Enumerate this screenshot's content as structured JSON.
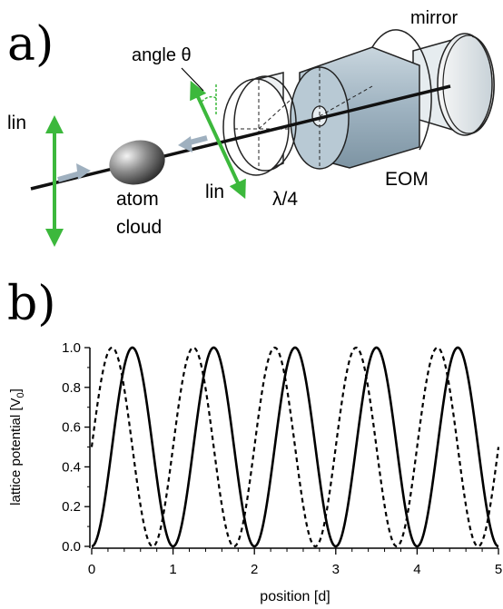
{
  "panel_a": {
    "label": "a)",
    "labels": {
      "mirror": "mirror",
      "angle": "angle θ",
      "lin_left": "lin",
      "lin_bottom": "lin",
      "quarter_wave": "λ/4",
      "eom": "EOM",
      "atom_line1": "atom",
      "atom_line2": "cloud"
    },
    "colors": {
      "polarization_arrow": "#3cb83c",
      "beam_arrow": "#9fb0bf",
      "eom_body": "#a9bcc8",
      "atom": "#555555"
    }
  },
  "panel_b": {
    "label": "b)"
  },
  "chart_data": {
    "type": "line",
    "xlabel": "position [d]",
    "ylabel": "lattice potential [V",
    "ylabel_sub": "0",
    "ylabel_end": "]",
    "xlim": [
      0,
      5
    ],
    "ylim": [
      0,
      1
    ],
    "x_ticks": [
      "0",
      "1",
      "2",
      "3",
      "4",
      "5"
    ],
    "y_ticks": [
      "0.0",
      "0.2",
      "0.4",
      "0.6",
      "0.8",
      "1.0"
    ],
    "series": [
      {
        "style": "solid",
        "function": "sin^2(pi*x)",
        "x": [
          0,
          0.5,
          1,
          1.5,
          2,
          2.5,
          3,
          3.5,
          4,
          4.5,
          5
        ],
        "y": [
          0,
          1,
          0,
          1,
          0,
          1,
          0,
          1,
          0,
          1,
          0
        ]
      },
      {
        "style": "dashed",
        "function": "sin^2(pi*(x+0.25))",
        "x": [
          0,
          0.25,
          0.75,
          1.25,
          1.75,
          2.25,
          2.75,
          3.25,
          3.75,
          4.25,
          4.75,
          5
        ],
        "y": [
          0.5,
          1,
          0,
          1,
          0,
          1,
          0,
          1,
          0,
          1,
          0,
          0.5
        ]
      }
    ]
  }
}
